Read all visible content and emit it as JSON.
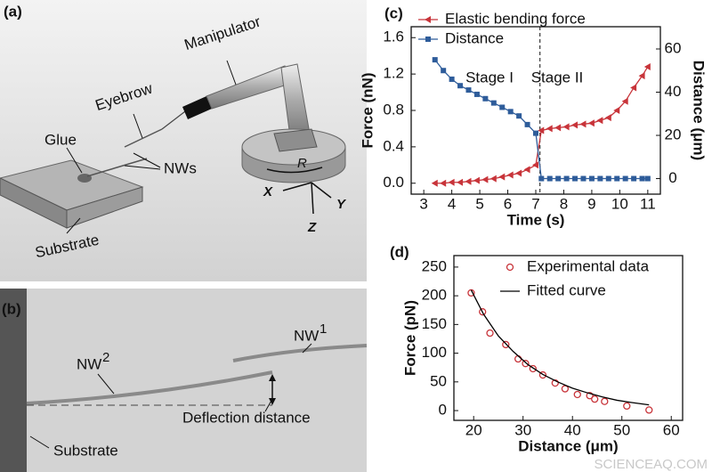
{
  "diagram_a": {
    "label": "(a)",
    "manipulator": "Manipulator",
    "eyebrow": "Eyebrow",
    "glue": "Glue",
    "nws": "NWs",
    "rotation": "R",
    "axis_x": "X",
    "axis_y": "Y",
    "axis_z": "Z",
    "substrate": "Substrate"
  },
  "diagram_b": {
    "label": "(b)",
    "nw1": {
      "text": "NW",
      "sup": "1"
    },
    "nw2": {
      "text": "NW",
      "sup": "2"
    },
    "deflection": "Deflection distance",
    "substrate": "Substrate"
  },
  "watermark": "SCIENCEAQ.COM",
  "chart_data": [
    {
      "type": "line",
      "label": "(c)",
      "xlabel": "Time (s)",
      "ylabel": "Force (nN)",
      "y2label": "Distance (μm)",
      "x": [
        3.4,
        3.7,
        4.0,
        4.3,
        4.6,
        4.9,
        5.2,
        5.5,
        5.8,
        6.1,
        6.4,
        6.7,
        7.0,
        7.2,
        7.5,
        7.8,
        8.1,
        8.4,
        8.7,
        9.0,
        9.3,
        9.6,
        9.9,
        10.2,
        10.5,
        10.8,
        11.0
      ],
      "xlim": [
        2.55,
        11.45
      ],
      "xticks": [
        3,
        4,
        5,
        6,
        7,
        8,
        9,
        10,
        11
      ],
      "ylim": [
        -0.12,
        1.72
      ],
      "yticks": [
        {
          "value": 0,
          "label": "0.0"
        },
        0.4,
        0.8,
        1.2,
        1.6
      ],
      "y2lim": [
        -7.2,
        70.3
      ],
      "y2ticks": [
        0,
        20,
        40,
        60
      ],
      "divider_x": 7.15,
      "annotations": [
        "Stage I",
        "Stage II"
      ],
      "series": [
        {
          "name": "Elastic bending force",
          "color": "#c8343a",
          "marker": "triangle-left",
          "mode": "lines+markers",
          "values": [
            0.0,
            0.0,
            0.01,
            0.01,
            0.02,
            0.03,
            0.04,
            0.05,
            0.07,
            0.09,
            0.11,
            0.15,
            0.2,
            0.58,
            0.6,
            0.61,
            0.62,
            0.64,
            0.65,
            0.66,
            0.69,
            0.72,
            0.8,
            0.9,
            1.05,
            1.18,
            1.28
          ]
        },
        {
          "name": "Distance",
          "color": "#2e5c9a",
          "marker": "square",
          "mode": "lines+markers",
          "axis": "y2",
          "values": [
            55,
            50,
            46,
            43,
            41,
            39,
            37,
            35,
            33,
            31,
            29,
            25,
            21,
            0,
            0,
            0,
            0,
            0,
            0,
            0,
            0,
            0,
            0,
            0,
            0,
            0,
            0
          ]
        }
      ]
    },
    {
      "type": "scatter",
      "label": "(d)",
      "xlabel": "Distance (μm)",
      "ylabel": "Force (pN)",
      "xlim": [
        16,
        62.3
      ],
      "xticks": [
        20,
        30,
        40,
        50,
        60
      ],
      "ylim": [
        -17,
        270
      ],
      "yticks": [
        0,
        50,
        100,
        150,
        200,
        250
      ],
      "series": [
        {
          "name": "Experimental data",
          "color": "#c8343a",
          "marker": "circle-open",
          "mode": "markers",
          "x": [
            19.5,
            21.8,
            23.3,
            26.5,
            29,
            30.5,
            32,
            34,
            36.5,
            38.5,
            41,
            43.5,
            44.5,
            46.5,
            51,
            55.5
          ],
          "values": [
            205,
            172,
            135,
            115,
            90,
            82,
            73,
            62,
            48,
            38,
            28,
            26,
            20,
            16,
            8,
            1
          ]
        },
        {
          "name": "Fitted curve",
          "color": "#000000",
          "mode": "lines",
          "x": [
            19.5,
            22,
            25,
            28,
            31,
            34,
            37,
            40,
            43,
            46,
            49,
            52,
            55.5
          ],
          "values": [
            210,
            168,
            130,
            103,
            80,
            63,
            50,
            39,
            31,
            24,
            18,
            14,
            10
          ]
        }
      ]
    }
  ]
}
